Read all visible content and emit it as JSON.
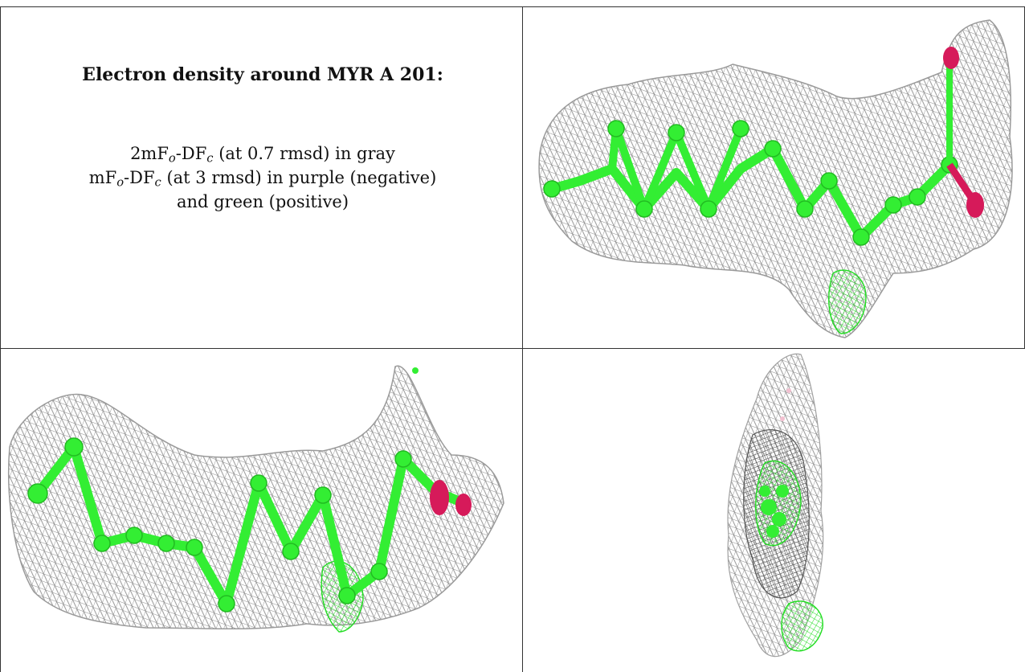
{
  "caption": {
    "title": "Electron density around MYR A 201:",
    "line1_prefix": "2mF",
    "line1_sub_o": "o",
    "line1_mid": "-DF",
    "line1_sub_c": "c",
    "line1_suffix": " (at 0.7 rmsd) in gray",
    "line2_prefix": "mF",
    "line2_sub_o": "o",
    "line2_mid": "-DF",
    "line2_sub_c": "c",
    "line2_suffix": " (at 3 rmsd) in purple (negative)",
    "line3": "and green (positive)"
  },
  "colors": {
    "mesh_gray": "#8c8c8c",
    "mesh_dark": "#4a4a4a",
    "carbon_green": "#33ee33",
    "diff_green": "#22dd22",
    "oxygen": "#d61a5a",
    "border": "#333333"
  }
}
